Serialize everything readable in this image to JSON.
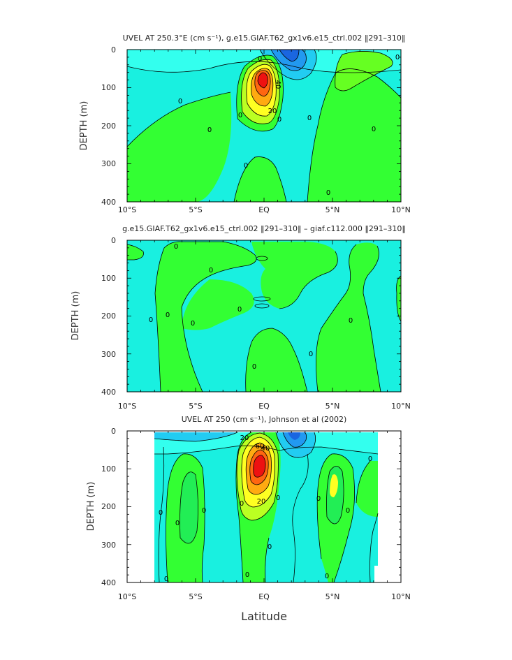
{
  "colors": {
    "background": "#ffffff",
    "cyan": "#19f0e0",
    "lightcyan": "#33ffee",
    "skyblue": "#22ccf2",
    "blue": "#2299f0",
    "deepblue": "#1a66e0",
    "green": "#33ff33",
    "lightgreen": "#22ee55",
    "yellowgreen": "#bbff22",
    "yellow": "#ffff22",
    "orange": "#ffaa11",
    "darkorange": "#ff6611",
    "red": "#ee1111"
  },
  "x_axis_label": "Latitude",
  "chart_data": [
    {
      "type": "heatmap",
      "title": "UVEL AT 250.3°E (cm s⁻¹), g.e15.GIAF.T62_gx1v6.e15_ctrl.002 ‖291–310‖",
      "ylabel": "DEPTH (m)",
      "xlim": [
        -10,
        10
      ],
      "ylim": [
        400,
        0
      ],
      "x_ticks": [
        "10°S",
        "5°S",
        "EQ",
        "5°N",
        "10°N"
      ],
      "y_ticks": [
        "0",
        "100",
        "200",
        "300",
        "400"
      ],
      "contour_labels": [
        "0",
        "0",
        "0",
        "0",
        "0",
        "0",
        "0",
        "0",
        "0",
        "40",
        "20",
        "0"
      ],
      "max_value_approx": 60,
      "core_location": {
        "lat": 0,
        "depth": 90
      }
    },
    {
      "type": "heatmap",
      "title": "g.e15.GIAF.T62_gx1v6.e15_ctrl.002 ‖291–310‖ – giaf.c112.000 ‖291–310‖",
      "ylabel": "DEPTH (m)",
      "xlim": [
        -10,
        10
      ],
      "ylim": [
        400,
        0
      ],
      "x_ticks": [
        "10°S",
        "5°S",
        "EQ",
        "5°N",
        "10°N"
      ],
      "y_ticks": [
        "0",
        "100",
        "200",
        "300",
        "400"
      ],
      "contour_labels": [
        "0",
        "0",
        "0",
        "0",
        "0",
        "0",
        "0",
        "0",
        "0"
      ]
    },
    {
      "type": "heatmap",
      "title": "UVEL AT 250 (cm s⁻¹), Johnson et al (2002)",
      "ylabel": "DEPTH (m)",
      "xlim": [
        -10,
        10
      ],
      "ylim": [
        400,
        0
      ],
      "x_ticks": [
        "10°S",
        "5°S",
        "EQ",
        "5°N",
        "10°N"
      ],
      "y_ticks": [
        "0",
        "100",
        "200",
        "300",
        "400"
      ],
      "contour_labels": [
        "0",
        "0",
        "0",
        "0",
        "0",
        "0",
        "0",
        "0",
        "0",
        "0",
        "0",
        "20",
        "40",
        "60",
        "20",
        "0"
      ],
      "data_extent_lat": [
        -8,
        8.2
      ],
      "max_value_approx": 70,
      "core_location": {
        "lat": -0.2,
        "depth": 75
      }
    }
  ]
}
